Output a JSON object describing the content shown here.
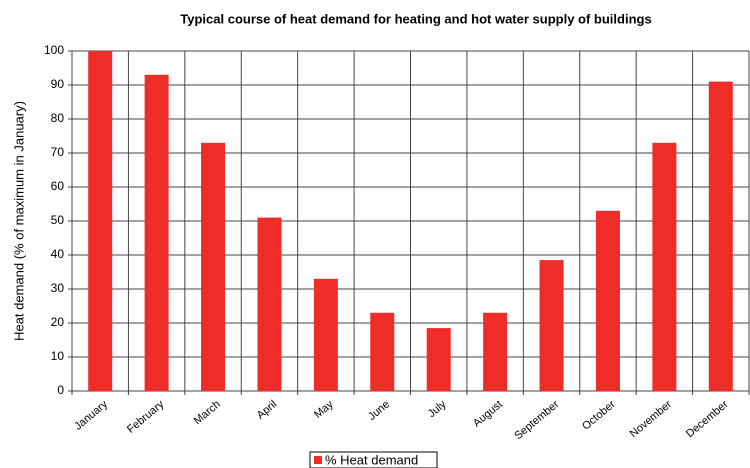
{
  "chart_data": {
    "type": "bar",
    "title": "Typical course of heat demand for heating and hot water supply of buildings",
    "y_label": "Heat demand (% of maximum in January)",
    "categories": [
      "January",
      "February",
      "March",
      "April",
      "May",
      "June",
      "July",
      "August",
      "September",
      "October",
      "November",
      "December"
    ],
    "series": [
      {
        "name": "% Heat demand",
        "color": "#ee2c28",
        "values": [
          100,
          93,
          73,
          51,
          33,
          23,
          18.5,
          23,
          38.5,
          53,
          73,
          91
        ]
      }
    ],
    "ylim": [
      0,
      100
    ],
    "yticks": [
      0,
      10,
      20,
      30,
      40,
      50,
      60,
      70,
      80,
      90,
      100
    ],
    "grid": true,
    "legend": "bottom"
  }
}
